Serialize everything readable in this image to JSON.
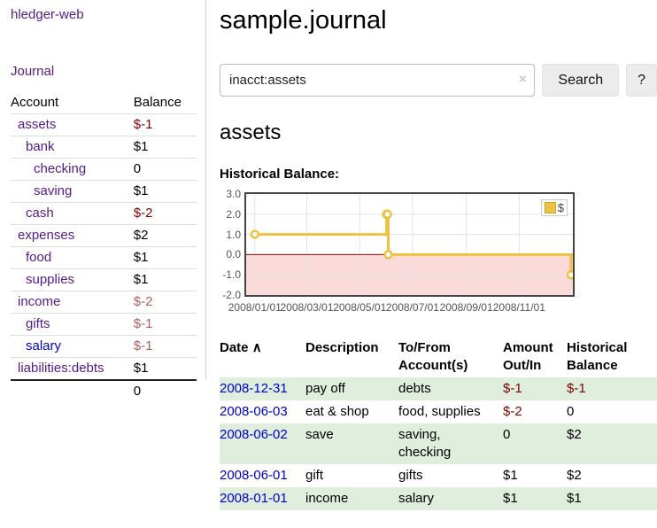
{
  "app": {
    "title": "hledger-web",
    "journal_link": "Journal"
  },
  "sidebar": {
    "accounts_header": {
      "account": "Account",
      "balance": "Balance"
    },
    "accounts": [
      {
        "name": "assets",
        "balance": "$-1",
        "indent": 1,
        "bold": true,
        "neg": "strong"
      },
      {
        "name": "bank",
        "balance": "$1",
        "indent": 2,
        "bold": true
      },
      {
        "name": "checking",
        "balance": "0",
        "indent": 3,
        "bold": true
      },
      {
        "name": "saving",
        "balance": "$1",
        "indent": 3,
        "bold": true
      },
      {
        "name": "cash",
        "balance": "$-2",
        "indent": 2,
        "bold": true,
        "neg": "strong"
      },
      {
        "name": "expenses",
        "balance": "$2",
        "indent": 1
      },
      {
        "name": "food",
        "balance": "$1",
        "indent": 2
      },
      {
        "name": "supplies",
        "balance": "$1",
        "indent": 2
      },
      {
        "name": "income",
        "balance": "$-2",
        "indent": 1,
        "neg": "dim"
      },
      {
        "name": "gifts",
        "balance": "$-1",
        "indent": 2,
        "neg": "dim"
      },
      {
        "name": "salary",
        "balance": "$-1",
        "indent": 2,
        "neg": "dim",
        "link_color": "blue"
      },
      {
        "name": "liabilities:debts",
        "balance": "$1",
        "indent": 1
      }
    ],
    "total": "0"
  },
  "header": {
    "title": "sample.journal"
  },
  "search": {
    "query": "inacct:assets",
    "clear_icon": "×",
    "button_label": "Search",
    "help_label": "?"
  },
  "register": {
    "heading": "assets",
    "chart_label": "Historical Balance:",
    "table": {
      "headers": {
        "date": "Date",
        "sort_icon": "∧",
        "description": "Description",
        "tofrom": "To/From Account(s)",
        "amount": "Amount Out/In",
        "balance": "Historical Balance"
      },
      "rows": [
        {
          "date": "2008-12-31",
          "description": "pay off",
          "accounts": "debts",
          "amount": "$-1",
          "amount_neg": true,
          "balance": "$-1",
          "balance_neg": true
        },
        {
          "date": "2008-06-03",
          "description": "eat & shop",
          "accounts": "food, supplies",
          "amount": "$-2",
          "amount_neg": true,
          "balance": "0",
          "balance_neg": false
        },
        {
          "date": "2008-06-02",
          "description": "save",
          "accounts": "saving, checking",
          "amount": "0",
          "amount_neg": false,
          "balance": "$2",
          "balance_neg": false
        },
        {
          "date": "2008-06-01",
          "description": "gift",
          "accounts": "gifts",
          "amount": "$1",
          "amount_neg": false,
          "balance": "$2",
          "balance_neg": false
        },
        {
          "date": "2008-01-01",
          "description": "income",
          "accounts": "salary",
          "amount": "$1",
          "amount_neg": false,
          "balance": "$1",
          "balance_neg": false
        }
      ]
    }
  },
  "chart_data": {
    "type": "line",
    "title": "Historical Balance:",
    "steps": true,
    "series": [
      {
        "name": "$",
        "points": [
          [
            "2008-01-01",
            1
          ],
          [
            "2008-06-01",
            2
          ],
          [
            "2008-06-02",
            2
          ],
          [
            "2008-06-03",
            0
          ],
          [
            "2008-12-31",
            -1
          ]
        ]
      }
    ],
    "x_ticks": [
      {
        "label": "2008/01/01",
        "date": "2008-01-01"
      },
      {
        "label": "2008/03/01",
        "date": "2008-03-01"
      },
      {
        "label": "2008/05/01",
        "date": "2008-05-01"
      },
      {
        "label": "2008/07/01",
        "date": "2008-07-01"
      },
      {
        "label": "2008/09/01",
        "date": "2008-09-01"
      },
      {
        "label": "2008/11/01",
        "date": "2008-11-01"
      }
    ],
    "y_ticks": [
      -2.0,
      -1.0,
      0.0,
      1.0,
      2.0,
      3.0
    ],
    "ylim": [
      -2,
      3
    ],
    "xlim": [
      "2007-12-22",
      "2009-01-02"
    ],
    "legend": {
      "label": "$",
      "position": "top-right"
    },
    "colors": {
      "line": "#edc240",
      "point_fill": "#ffffff",
      "negative_region": "#fbdada",
      "zero_line": "#8b0000",
      "grid": "#e3e3e3"
    }
  }
}
